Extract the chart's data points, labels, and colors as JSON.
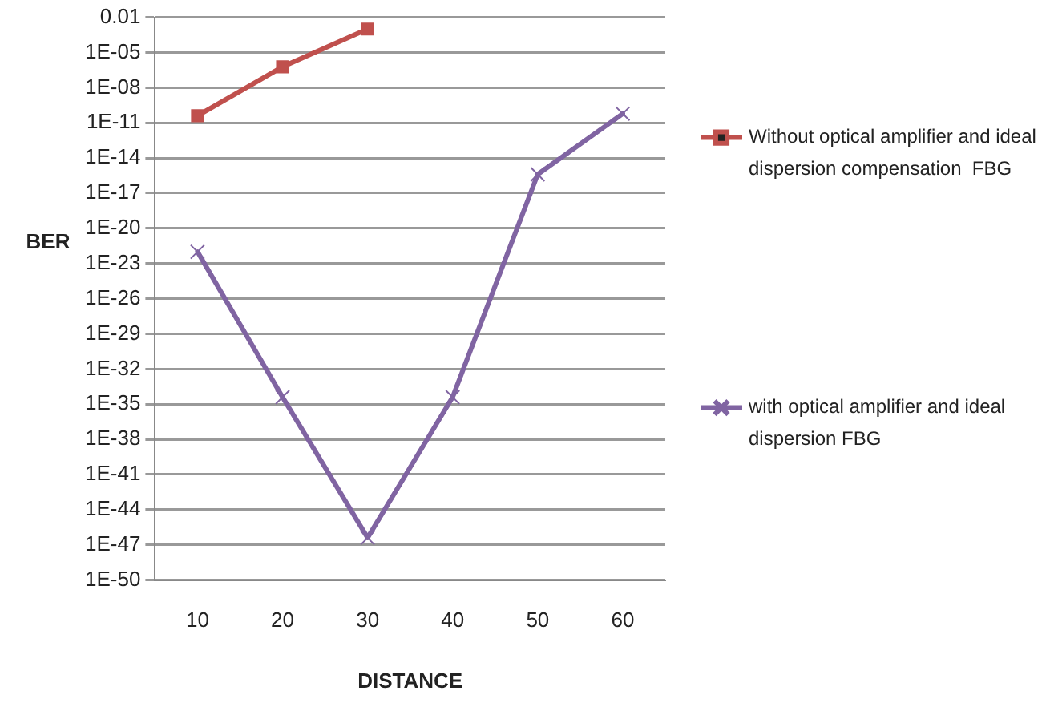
{
  "chart_data": {
    "type": "line",
    "xlabel": "DISTANCE",
    "ylabel": "BER",
    "categories": [
      "10",
      "20",
      "30",
      "40",
      "50",
      "60"
    ],
    "series": [
      {
        "name": "Without optical amplifier and ideal dispersion compensation  FBG",
        "color": "#c0504d",
        "marker": "square",
        "values": [
          4e-11,
          6e-07,
          0.001,
          null,
          null,
          null
        ]
      },
      {
        "name": "with optical amplifier and ideal dispersion FBG",
        "color": "#8064a2",
        "marker": "cross",
        "values": [
          1e-22,
          4e-35,
          4e-47,
          4e-35,
          4e-16,
          6e-11
        ]
      }
    ],
    "log": "y",
    "ylim": [
      1e-50,
      0.01
    ],
    "yticks": [
      0.01,
      {
        "value": 1e-05,
        "label": "1E-05"
      },
      {
        "value": 1e-08,
        "label": "1E-08"
      },
      {
        "value": 1e-11,
        "label": "1E-11"
      },
      {
        "value": 1e-14,
        "label": "1E-14"
      },
      {
        "value": 1e-17,
        "label": "1E-17"
      },
      {
        "value": 1e-20,
        "label": "1E-20"
      },
      {
        "value": 1e-23,
        "label": "1E-23"
      },
      {
        "value": 1e-26,
        "label": "1E-26"
      },
      {
        "value": 1e-29,
        "label": "1E-29"
      },
      {
        "value": 1e-32,
        "label": "1E-32"
      },
      {
        "value": 1e-35,
        "label": "1E-35"
      },
      {
        "value": 1e-38,
        "label": "1E-38"
      },
      {
        "value": 1e-41,
        "label": "1E-41"
      },
      {
        "value": 1e-44,
        "label": "1E-44"
      },
      {
        "value": 1e-47,
        "label": "1E-47"
      },
      {
        "value": 1e-50,
        "label": "1E-50"
      }
    ],
    "grid": "y",
    "legend": "right",
    "line_style": "solid"
  }
}
